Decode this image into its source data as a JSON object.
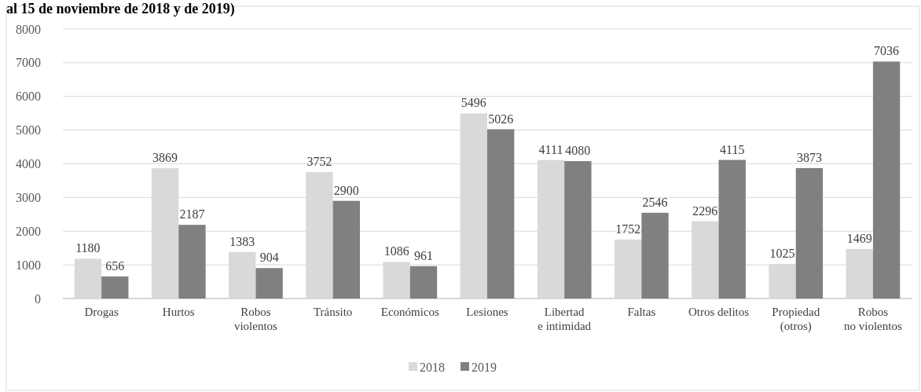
{
  "chart_data": {
    "type": "bar",
    "title": "al 15 de noviembre de 2018 y de 2019)",
    "categories": [
      "Drogas",
      "Hurtos",
      "Robos\nviolentos",
      "Tránsito",
      "Económicos",
      "Lesiones",
      "Libertad\ne intimidad",
      "Faltas",
      "Otros delitos",
      "Propiedad\n(otros)",
      "Robos\nno violentos"
    ],
    "series": [
      {
        "name": "2018",
        "color": "#d9d9d9",
        "values": [
          1180,
          3869,
          1383,
          3752,
          1086,
          5496,
          4111,
          1752,
          2296,
          1025,
          1469
        ]
      },
      {
        "name": "2019",
        "color": "#808080",
        "values": [
          656,
          2187,
          904,
          2900,
          961,
          5026,
          4080,
          2546,
          4115,
          3873,
          7036
        ]
      }
    ],
    "ylim": [
      0,
      8000
    ],
    "yticks": [
      0,
      1000,
      2000,
      3000,
      4000,
      5000,
      6000,
      7000,
      8000
    ],
    "grid": "y",
    "legend": "bottom",
    "data_labels": true
  }
}
